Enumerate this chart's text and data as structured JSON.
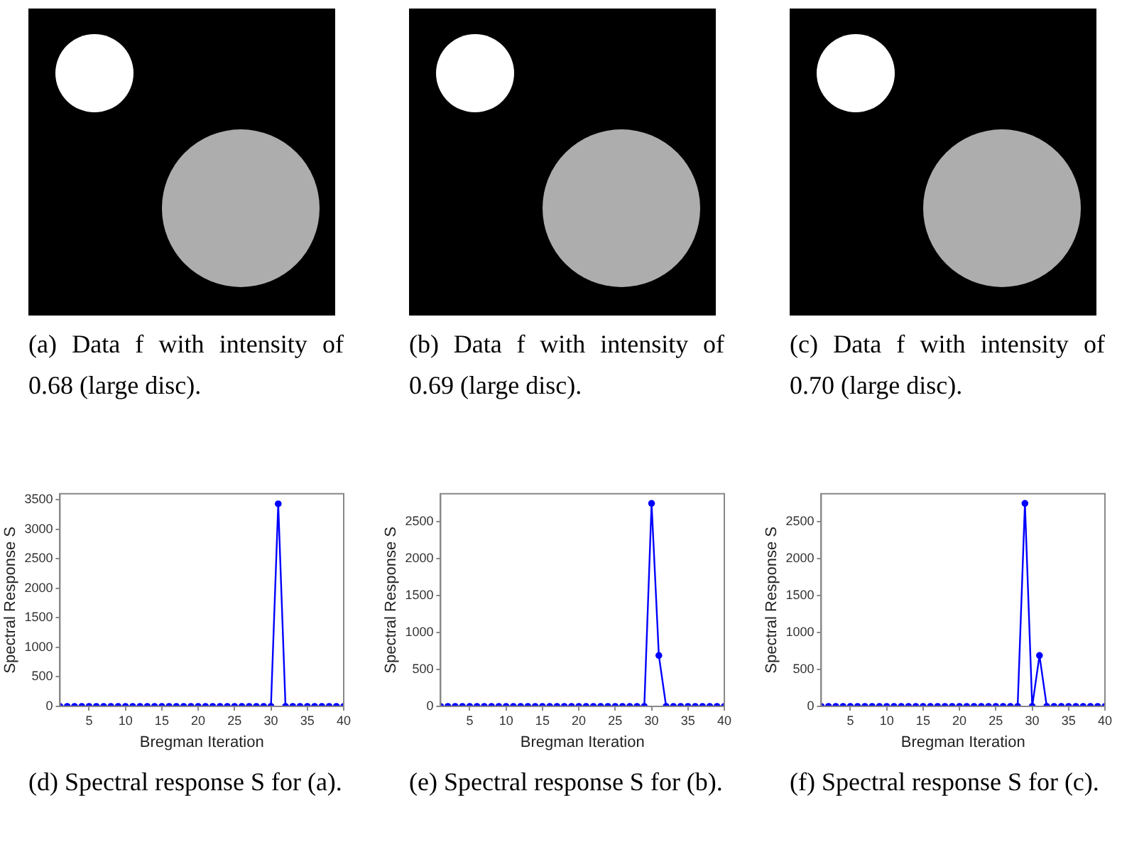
{
  "chart_data": [
    {
      "type": "other",
      "annotations": [
        "(a) Data f with intensity of 0.68 (large disc)."
      ]
    },
    {
      "type": "other",
      "annotations": [
        "(b) Data f with intensity of 0.69 (large disc)."
      ]
    },
    {
      "type": "other",
      "annotations": [
        "(c) Data f with intensity of 0.70 (large disc)."
      ]
    },
    {
      "type": "line",
      "xlabel": "Bregman Iteration",
      "ylabel": "Spectral Response S",
      "x": [
        1,
        2,
        3,
        4,
        5,
        6,
        7,
        8,
        9,
        10,
        11,
        12,
        13,
        14,
        15,
        16,
        17,
        18,
        19,
        20,
        21,
        22,
        23,
        24,
        25,
        26,
        27,
        28,
        29,
        30,
        31,
        32,
        33,
        34,
        35,
        36,
        37,
        38,
        39,
        40
      ],
      "series": [
        {
          "color": "#0000ff",
          "values": [
            0,
            0,
            0,
            0,
            0,
            0,
            0,
            0,
            0,
            0,
            0,
            0,
            0,
            0,
            0,
            0,
            0,
            0,
            0,
            0,
            0,
            0,
            0,
            0,
            0,
            0,
            0,
            0,
            0,
            0,
            3430,
            0,
            0,
            0,
            0,
            0,
            0,
            0,
            0,
            0
          ]
        }
      ],
      "xlim": [
        1,
        40
      ],
      "xticks": [
        5,
        10,
        15,
        20,
        25,
        30,
        35,
        40
      ],
      "ylim": [
        0,
        3600
      ],
      "yticks": [
        0,
        500,
        1000,
        1500,
        2000,
        2500,
        3000,
        3500
      ],
      "marker": "circle",
      "line_style": "solid",
      "grid": false,
      "annotations": [
        "(d) Spectral response S for (a)."
      ]
    },
    {
      "type": "line",
      "xlabel": "Bregman Iteration",
      "ylabel": "Spectral Response S",
      "x": [
        1,
        2,
        3,
        4,
        5,
        6,
        7,
        8,
        9,
        10,
        11,
        12,
        13,
        14,
        15,
        16,
        17,
        18,
        19,
        20,
        21,
        22,
        23,
        24,
        25,
        26,
        27,
        28,
        29,
        30,
        31,
        32,
        33,
        34,
        35,
        36,
        37,
        38,
        39,
        40
      ],
      "series": [
        {
          "color": "#0000ff",
          "values": [
            0,
            0,
            0,
            0,
            0,
            0,
            0,
            0,
            0,
            0,
            0,
            0,
            0,
            0,
            0,
            0,
            0,
            0,
            0,
            0,
            0,
            0,
            0,
            0,
            0,
            0,
            0,
            0,
            0,
            2750,
            690,
            0,
            0,
            0,
            0,
            0,
            0,
            0,
            0,
            0
          ]
        }
      ],
      "xlim": [
        1,
        40
      ],
      "xticks": [
        5,
        10,
        15,
        20,
        25,
        30,
        35,
        40
      ],
      "ylim": [
        0,
        2880
      ],
      "yticks": [
        0,
        500,
        1000,
        1500,
        2000,
        2500
      ],
      "marker": "circle",
      "line_style": "solid",
      "grid": false,
      "annotations": [
        "(e) Spectral response S for (b)."
      ]
    },
    {
      "type": "line",
      "xlabel": "Bregman Iteration",
      "ylabel": "Spectral Response S",
      "x": [
        1,
        2,
        3,
        4,
        5,
        6,
        7,
        8,
        9,
        10,
        11,
        12,
        13,
        14,
        15,
        16,
        17,
        18,
        19,
        20,
        21,
        22,
        23,
        24,
        25,
        26,
        27,
        28,
        29,
        30,
        31,
        32,
        33,
        34,
        35,
        36,
        37,
        38,
        39,
        40
      ],
      "series": [
        {
          "color": "#0000ff",
          "values": [
            0,
            0,
            0,
            0,
            0,
            0,
            0,
            0,
            0,
            0,
            0,
            0,
            0,
            0,
            0,
            0,
            0,
            0,
            0,
            0,
            0,
            0,
            0,
            0,
            0,
            0,
            0,
            0,
            2750,
            0,
            690,
            0,
            0,
            0,
            0,
            0,
            0,
            0,
            0,
            0
          ]
        }
      ],
      "xlim": [
        1,
        40
      ],
      "xticks": [
        5,
        10,
        15,
        20,
        25,
        30,
        35,
        40
      ],
      "ylim": [
        0,
        2880
      ],
      "yticks": [
        0,
        500,
        1000,
        1500,
        2000,
        2500
      ],
      "marker": "circle",
      "line_style": "solid",
      "grid": false,
      "annotations": [
        "(f) Spectral response S for (c)."
      ]
    }
  ]
}
